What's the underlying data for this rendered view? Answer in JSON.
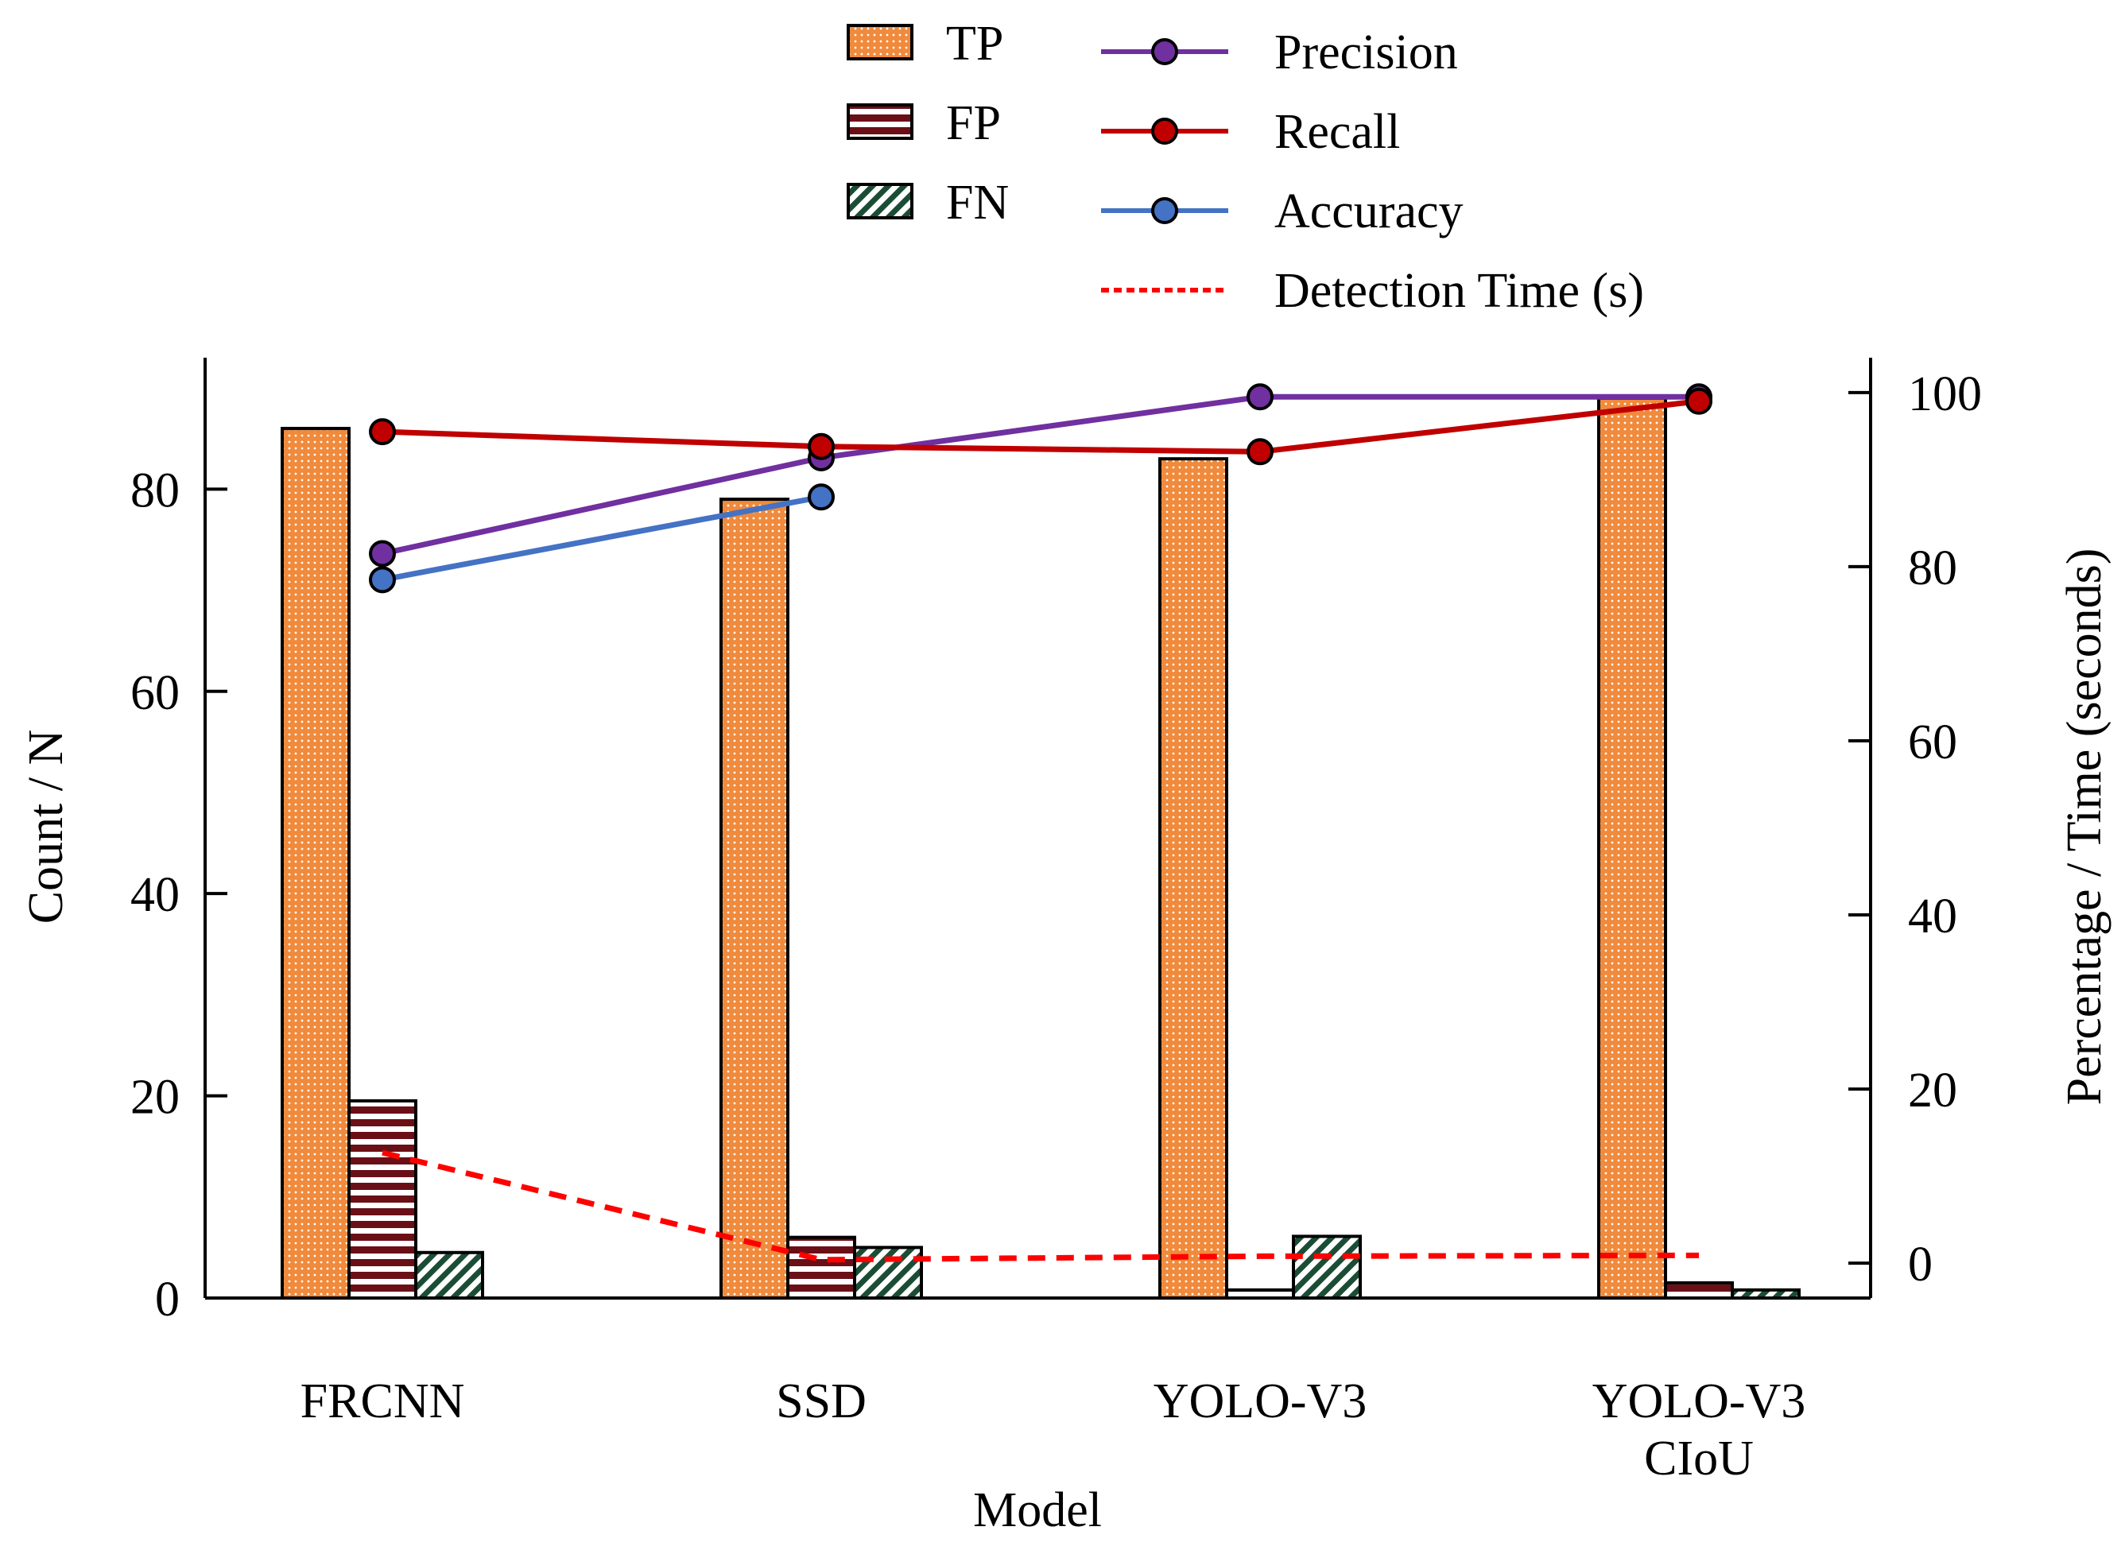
{
  "chart_data": {
    "type": "bar",
    "xlabel": "Model",
    "ylabel": "Count / N",
    "y2label": "Percentage / Time (seconds)",
    "categories": [
      [
        "FRCNN"
      ],
      [
        "SSD"
      ],
      [
        "YOLO-V3"
      ],
      [
        "YOLO-V3",
        "CIoU"
      ]
    ],
    "ylim": [
      0,
      93
    ],
    "y2lim": [
      -4,
      104
    ],
    "yticks": [
      "0",
      "20",
      "40",
      "60",
      "80"
    ],
    "y2ticks": [
      "0",
      "20",
      "40",
      "60",
      "80",
      "100"
    ],
    "legend_position": "top",
    "bar_series": [
      {
        "name": "TP",
        "values": [
          86,
          79,
          83,
          89
        ],
        "color": "#f08a3c",
        "pattern": "dots"
      },
      {
        "name": "FP",
        "values": [
          19.5,
          6,
          0.8,
          1.5
        ],
        "color": "#6b0f17",
        "pattern": "hlines"
      },
      {
        "name": "FN",
        "values": [
          4.5,
          5,
          6.1,
          0.8
        ],
        "color": "#1b4d35",
        "pattern": "diag"
      }
    ],
    "line_series": [
      {
        "name": "Precision",
        "values": [
          81.5,
          92.5,
          99.5,
          99.5
        ],
        "color": "#7030a0",
        "marker": "circle"
      },
      {
        "name": "Recall",
        "values": [
          95.5,
          93.8,
          93.2,
          99
        ],
        "color": "#c00000",
        "marker": "circle"
      },
      {
        "name": "Accuracy",
        "values": [
          78.5,
          88,
          null,
          null
        ],
        "color": "#4472c4",
        "marker": "circle"
      },
      {
        "name": "Detection Time (s)",
        "values": [
          12.7,
          0.4,
          0.8,
          0.9
        ],
        "color": "#ff0000",
        "marker": "none",
        "style": "dashed"
      }
    ]
  }
}
